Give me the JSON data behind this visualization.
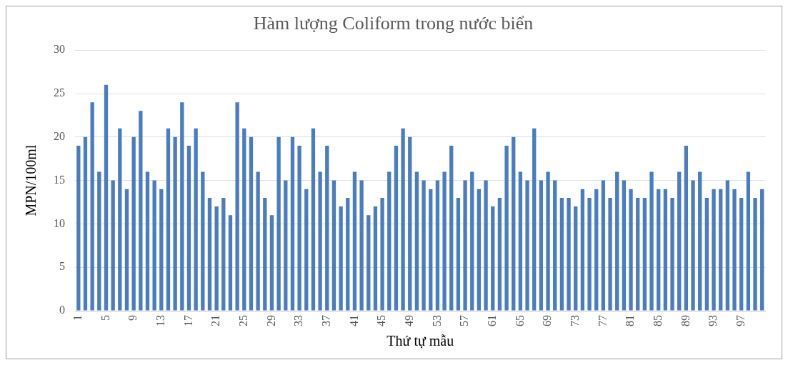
{
  "chart_data": {
    "type": "bar",
    "title": "Hàm lượng Coliform trong nước biển",
    "xlabel": "Thứ tự mẫu",
    "ylabel": "MPN/100ml",
    "categories": [
      "1",
      null,
      null,
      null,
      "5",
      null,
      null,
      null,
      "9",
      null,
      null,
      null,
      "13",
      null,
      null,
      null,
      "17",
      null,
      null,
      null,
      "21",
      null,
      null,
      null,
      "25",
      null,
      null,
      null,
      "29",
      null,
      null,
      null,
      "33",
      null,
      null,
      null,
      "37",
      null,
      null,
      null,
      "41",
      null,
      null,
      null,
      "45",
      null,
      null,
      null,
      "49",
      null,
      null,
      null,
      "53",
      null,
      null,
      null,
      "57",
      null,
      null,
      null,
      "61",
      null,
      null,
      null,
      "65",
      null,
      null,
      null,
      "69",
      null,
      null,
      null,
      "73",
      null,
      null,
      null,
      "77",
      null,
      null,
      null,
      "81",
      null,
      null,
      null,
      "85",
      null,
      null,
      null,
      "89",
      null,
      null,
      null,
      "93",
      null,
      null,
      null,
      "97",
      null,
      null,
      null
    ],
    "values": [
      19,
      20,
      24,
      16,
      26,
      15,
      21,
      14,
      20,
      23,
      16,
      15,
      14,
      21,
      20,
      24,
      19,
      21,
      16,
      13,
      12,
      13,
      11,
      24,
      21,
      20,
      16,
      13,
      11,
      20,
      15,
      20,
      19,
      14,
      21,
      16,
      19,
      15,
      12,
      13,
      16,
      15,
      11,
      12,
      13,
      16,
      19,
      21,
      20,
      16,
      15,
      14,
      15,
      16,
      19,
      13,
      15,
      16,
      14,
      15,
      12,
      13,
      19,
      20,
      16,
      15,
      21,
      15,
      16,
      15,
      13,
      13,
      12,
      14,
      13,
      14,
      15,
      13,
      16,
      15,
      14,
      13,
      13,
      16,
      14,
      14,
      13,
      16,
      19,
      15,
      16,
      13,
      14,
      14,
      15,
      14,
      13,
      16,
      13,
      14
    ],
    "color": "#4a7cc0",
    "ylim": [
      0,
      30
    ],
    "yticks": [
      0,
      5,
      10,
      15,
      20,
      25,
      30
    ],
    "grid": "y"
  }
}
